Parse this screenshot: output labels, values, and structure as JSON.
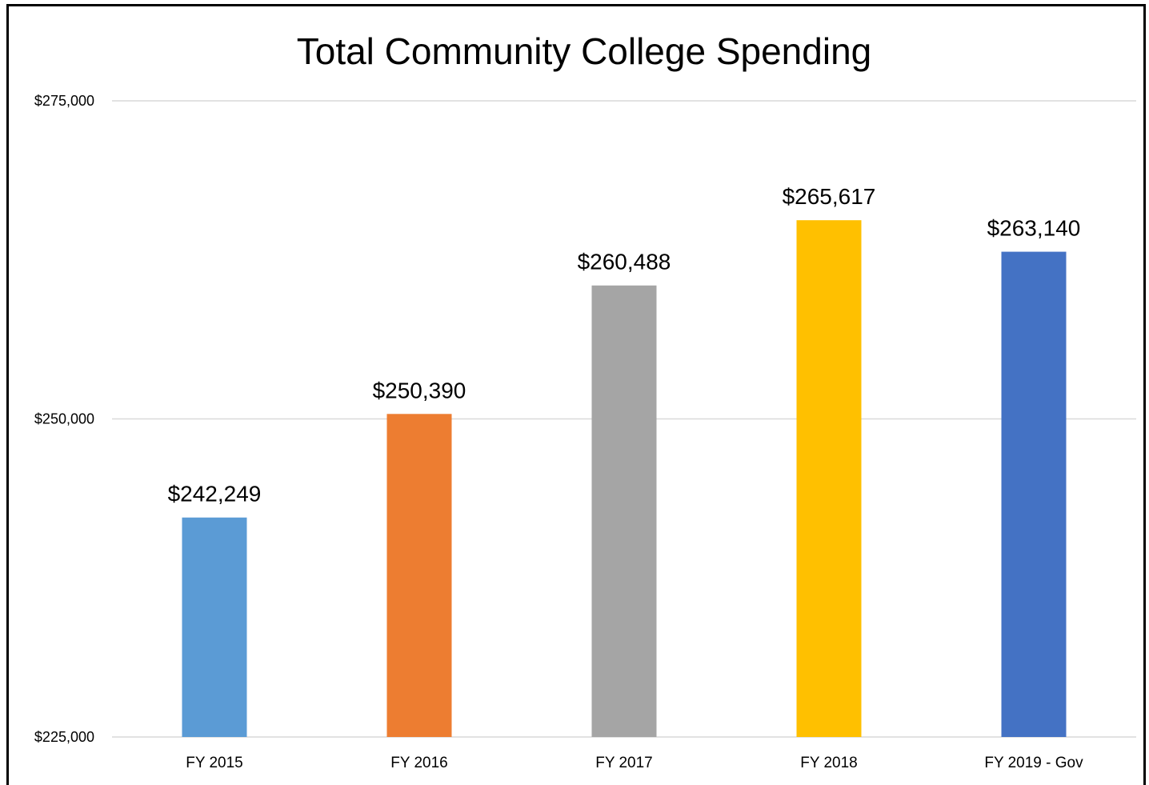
{
  "chart_data": {
    "type": "bar",
    "title": "Total Community College Spending",
    "categories": [
      "FY 2015",
      "FY 2016",
      "FY 2017",
      "FY 2018",
      "FY 2019 - Gov"
    ],
    "values": [
      242249,
      250390,
      260488,
      265617,
      263140
    ],
    "data_labels": [
      "$242,249",
      "$250,390",
      "$260,488",
      "$265,617",
      "$263,140"
    ],
    "colors": [
      "#5b9bd5",
      "#ed7d31",
      "#a5a5a5",
      "#ffc000",
      "#4472c4"
    ],
    "ylim": [
      225000,
      275000
    ],
    "yticks": [
      225000,
      250000,
      275000
    ],
    "ytick_labels": [
      "$225,000",
      "$250,000",
      "$275,000"
    ],
    "xlabel": "",
    "ylabel": "",
    "grid": true,
    "legend": "none"
  }
}
